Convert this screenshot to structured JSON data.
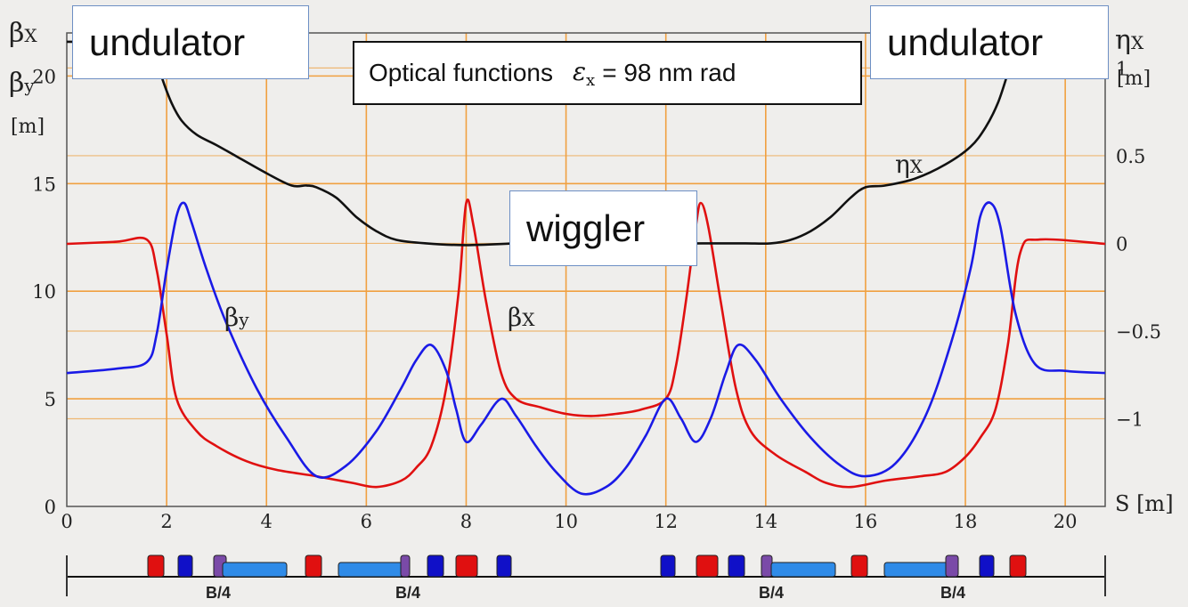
{
  "left_axis_title": {
    "line1": "β",
    "line1_sub": "X",
    "line2": "β",
    "line2_sub": "y",
    "unit": "[m]"
  },
  "right_axis_title": {
    "symbol": "η",
    "symbol_sub": "X",
    "unit": "[m]"
  },
  "x_axis_label": "S [m]",
  "title_box": {
    "text": "Optical functions",
    "eps": "ε",
    "eps_sub": "x",
    "value": "= 98 nm rad"
  },
  "callouts": {
    "left": "undulator",
    "right": "undulator",
    "center": "wiggler"
  },
  "curve_labels": {
    "beta_y": "β",
    "beta_y_sub": "y",
    "beta_x": "β",
    "beta_x_sub": "X",
    "eta_x": "η",
    "eta_x_sub": "X"
  },
  "lattice_labels": [
    "B/4",
    "B/4",
    "B/4",
    "B/4"
  ],
  "colors": {
    "beta_x": "#e01010",
    "beta_y": "#1a1ae6",
    "eta_x": "#111111",
    "grid": "#f0a040",
    "dipole": "#2f8be8",
    "quad_focus": "#e01010",
    "quad_defocus": "#1010c8",
    "purple": "#7a4aa8"
  },
  "chart_data": {
    "type": "line",
    "xlim": [
      0,
      20.8
    ],
    "ylim_left": [
      0,
      22
    ],
    "ylim_right": [
      -1.5,
      1.2
    ],
    "x_ticks": [
      0,
      2,
      4,
      6,
      8,
      10,
      12,
      14,
      16,
      18,
      20
    ],
    "y_ticks_left": [
      0,
      5,
      10,
      15,
      20
    ],
    "y_ticks_right": [
      -1,
      -0.5,
      0,
      0.5,
      1
    ],
    "y_tick_labels_right": [
      "−1",
      "−0.5",
      "0",
      "0.5",
      "1"
    ],
    "grid": true,
    "series": [
      {
        "name": "βx",
        "axis": "left",
        "x": [
          0,
          1.0,
          1.6,
          1.8,
          2.0,
          2.2,
          2.6,
          3.0,
          3.6,
          4.2,
          5.0,
          5.7,
          6.2,
          6.7,
          7.0,
          7.3,
          7.6,
          7.85,
          8.0,
          8.15,
          8.4,
          8.7,
          9.0,
          9.5,
          10.0,
          10.5,
          11.0,
          11.5,
          12.0,
          12.2,
          12.4,
          12.6,
          12.7,
          12.85,
          13.1,
          13.4,
          13.7,
          14.2,
          14.8,
          15.2,
          15.7,
          16.4,
          17.1,
          17.6,
          18.0,
          18.3,
          18.6,
          18.85,
          19.1,
          19.5,
          20.8
        ],
        "y": [
          12.2,
          12.3,
          12.4,
          11.0,
          8.0,
          5.0,
          3.5,
          2.8,
          2.1,
          1.7,
          1.4,
          1.1,
          0.9,
          1.2,
          1.8,
          2.8,
          5.5,
          10.0,
          14.1,
          13.0,
          9.5,
          6.2,
          5.0,
          4.6,
          4.3,
          4.2,
          4.3,
          4.5,
          5.0,
          6.5,
          9.5,
          13.0,
          14.1,
          13.0,
          9.5,
          5.5,
          3.5,
          2.4,
          1.6,
          1.1,
          0.9,
          1.2,
          1.4,
          1.6,
          2.3,
          3.2,
          4.5,
          7.5,
          11.8,
          12.4,
          12.2
        ]
      },
      {
        "name": "βy",
        "axis": "left",
        "x": [
          0,
          1.0,
          1.6,
          1.8,
          2.0,
          2.2,
          2.35,
          2.5,
          2.8,
          3.2,
          3.8,
          4.4,
          5.0,
          5.6,
          6.2,
          6.7,
          7.0,
          7.3,
          7.6,
          7.8,
          8.0,
          8.3,
          8.7,
          9.0,
          9.4,
          9.8,
          10.3,
          10.8,
          11.2,
          11.6,
          12.0,
          12.3,
          12.6,
          12.9,
          13.2,
          13.45,
          13.8,
          14.3,
          14.9,
          15.5,
          16.0,
          16.6,
          17.2,
          17.7,
          18.1,
          18.3,
          18.5,
          18.7,
          19.0,
          19.4,
          20.0,
          20.8
        ],
        "y": [
          6.2,
          6.4,
          6.7,
          8.0,
          11.0,
          13.5,
          14.1,
          13.2,
          11.0,
          8.5,
          5.5,
          3.2,
          1.4,
          1.9,
          3.5,
          5.5,
          6.8,
          7.5,
          6.3,
          4.5,
          3.0,
          3.8,
          5.0,
          4.2,
          2.8,
          1.6,
          0.6,
          0.9,
          1.8,
          3.3,
          5.0,
          4.1,
          3.0,
          4.1,
          6.2,
          7.5,
          6.8,
          5.0,
          3.2,
          1.9,
          1.4,
          2.0,
          4.2,
          7.5,
          11.0,
          13.5,
          14.1,
          13.0,
          9.0,
          6.6,
          6.3,
          6.2
        ]
      },
      {
        "name": "ηx",
        "axis": "right",
        "x": [
          0,
          1.0,
          1.6,
          1.75,
          1.9,
          2.1,
          2.3,
          2.6,
          3.0,
          3.5,
          4.0,
          4.5,
          4.8,
          5.0,
          5.4,
          5.8,
          6.2,
          6.6,
          7.2,
          8.0,
          9.0,
          10.0,
          11.0,
          12.0,
          13.0,
          13.6,
          14.1,
          14.5,
          14.9,
          15.3,
          15.7,
          16.0,
          16.4,
          17.0,
          17.6,
          18.1,
          18.4,
          18.65,
          18.85,
          19.0,
          19.1,
          19.5,
          20.8
        ],
        "y": [
          1.15,
          1.15,
          1.15,
          1.1,
          0.95,
          0.8,
          0.7,
          0.62,
          0.56,
          0.48,
          0.4,
          0.33,
          0.33,
          0.32,
          0.26,
          0.15,
          0.07,
          0.02,
          0.0,
          -0.01,
          0.0,
          0.01,
          0.01,
          0.0,
          0.0,
          0.0,
          0.0,
          0.02,
          0.07,
          0.15,
          0.26,
          0.32,
          0.33,
          0.37,
          0.45,
          0.55,
          0.66,
          0.8,
          0.97,
          1.1,
          1.15,
          1.15,
          1.15
        ]
      }
    ]
  }
}
